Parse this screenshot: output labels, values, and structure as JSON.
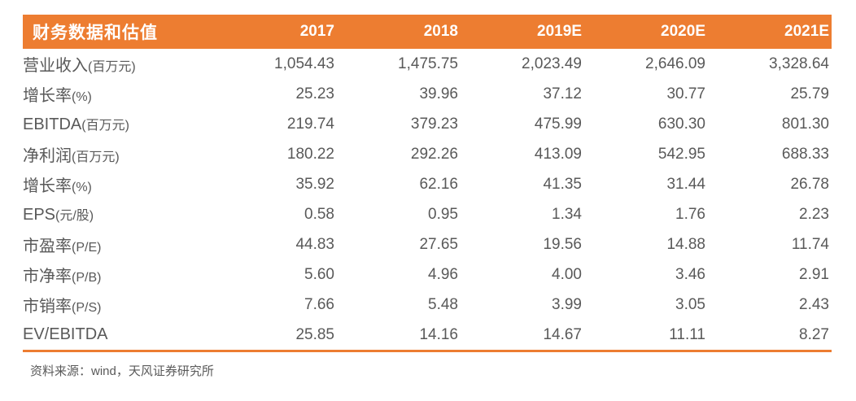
{
  "colors": {
    "accent_orange": "#ED7D31",
    "header_text": "#FFFFFF",
    "body_text": "#595959"
  },
  "table": {
    "title": "财务数据和估值",
    "columns": [
      "2017",
      "2018",
      "2019E",
      "2020E",
      "2021E"
    ],
    "rows": [
      {
        "label": "营业收入",
        "unit": "(百万元)",
        "values": [
          "1,054.43",
          "1,475.75",
          "2,023.49",
          "2,646.09",
          "3,328.64"
        ]
      },
      {
        "label": "增长率",
        "unit": "(%)",
        "values": [
          "25.23",
          "39.96",
          "37.12",
          "30.77",
          "25.79"
        ]
      },
      {
        "label": "EBITDA",
        "unit": "(百万元)",
        "values": [
          "219.74",
          "379.23",
          "475.99",
          "630.30",
          "801.30"
        ]
      },
      {
        "label": "净利润",
        "unit": "(百万元)",
        "values": [
          "180.22",
          "292.26",
          "413.09",
          "542.95",
          "688.33"
        ]
      },
      {
        "label": "增长率",
        "unit": "(%)",
        "values": [
          "35.92",
          "62.16",
          "41.35",
          "31.44",
          "26.78"
        ]
      },
      {
        "label": "EPS",
        "unit": "(元/股)",
        "values": [
          "0.58",
          "0.95",
          "1.34",
          "1.76",
          "2.23"
        ]
      },
      {
        "label": "市盈率",
        "unit": "(P/E)",
        "values": [
          "44.83",
          "27.65",
          "19.56",
          "14.88",
          "11.74"
        ]
      },
      {
        "label": "市净率",
        "unit": "(P/B)",
        "values": [
          "5.60",
          "4.96",
          "4.00",
          "3.46",
          "2.91"
        ]
      },
      {
        "label": "市销率",
        "unit": "(P/S)",
        "values": [
          "7.66",
          "5.48",
          "3.99",
          "3.05",
          "2.43"
        ]
      },
      {
        "label": "EV/EBITDA",
        "unit": "",
        "values": [
          "25.85",
          "14.16",
          "14.67",
          "11.11",
          "8.27"
        ]
      }
    ],
    "source_note": "资料来源：wind，天风证券研究所"
  },
  "chart_data": {
    "type": "table",
    "title": "财务数据和估值",
    "categories": [
      "2017",
      "2018",
      "2019E",
      "2020E",
      "2021E"
    ],
    "series": [
      {
        "name": "营业收入(百万元)",
        "values": [
          1054.43,
          1475.75,
          2023.49,
          2646.09,
          3328.64
        ]
      },
      {
        "name": "增长率(%)",
        "values": [
          25.23,
          39.96,
          37.12,
          30.77,
          25.79
        ]
      },
      {
        "name": "EBITDA(百万元)",
        "values": [
          219.74,
          379.23,
          475.99,
          630.3,
          801.3
        ]
      },
      {
        "name": "净利润(百万元)",
        "values": [
          180.22,
          292.26,
          413.09,
          542.95,
          688.33
        ]
      },
      {
        "name": "增长率(%)",
        "values": [
          35.92,
          62.16,
          41.35,
          31.44,
          26.78
        ]
      },
      {
        "name": "EPS(元/股)",
        "values": [
          0.58,
          0.95,
          1.34,
          1.76,
          2.23
        ]
      },
      {
        "name": "市盈率(P/E)",
        "values": [
          44.83,
          27.65,
          19.56,
          14.88,
          11.74
        ]
      },
      {
        "name": "市净率(P/B)",
        "values": [
          5.6,
          4.96,
          4.0,
          3.46,
          2.91
        ]
      },
      {
        "name": "市销率(P/S)",
        "values": [
          7.66,
          5.48,
          3.99,
          3.05,
          2.43
        ]
      },
      {
        "name": "EV/EBITDA",
        "values": [
          25.85,
          14.16,
          14.67,
          11.11,
          8.27
        ]
      }
    ]
  }
}
